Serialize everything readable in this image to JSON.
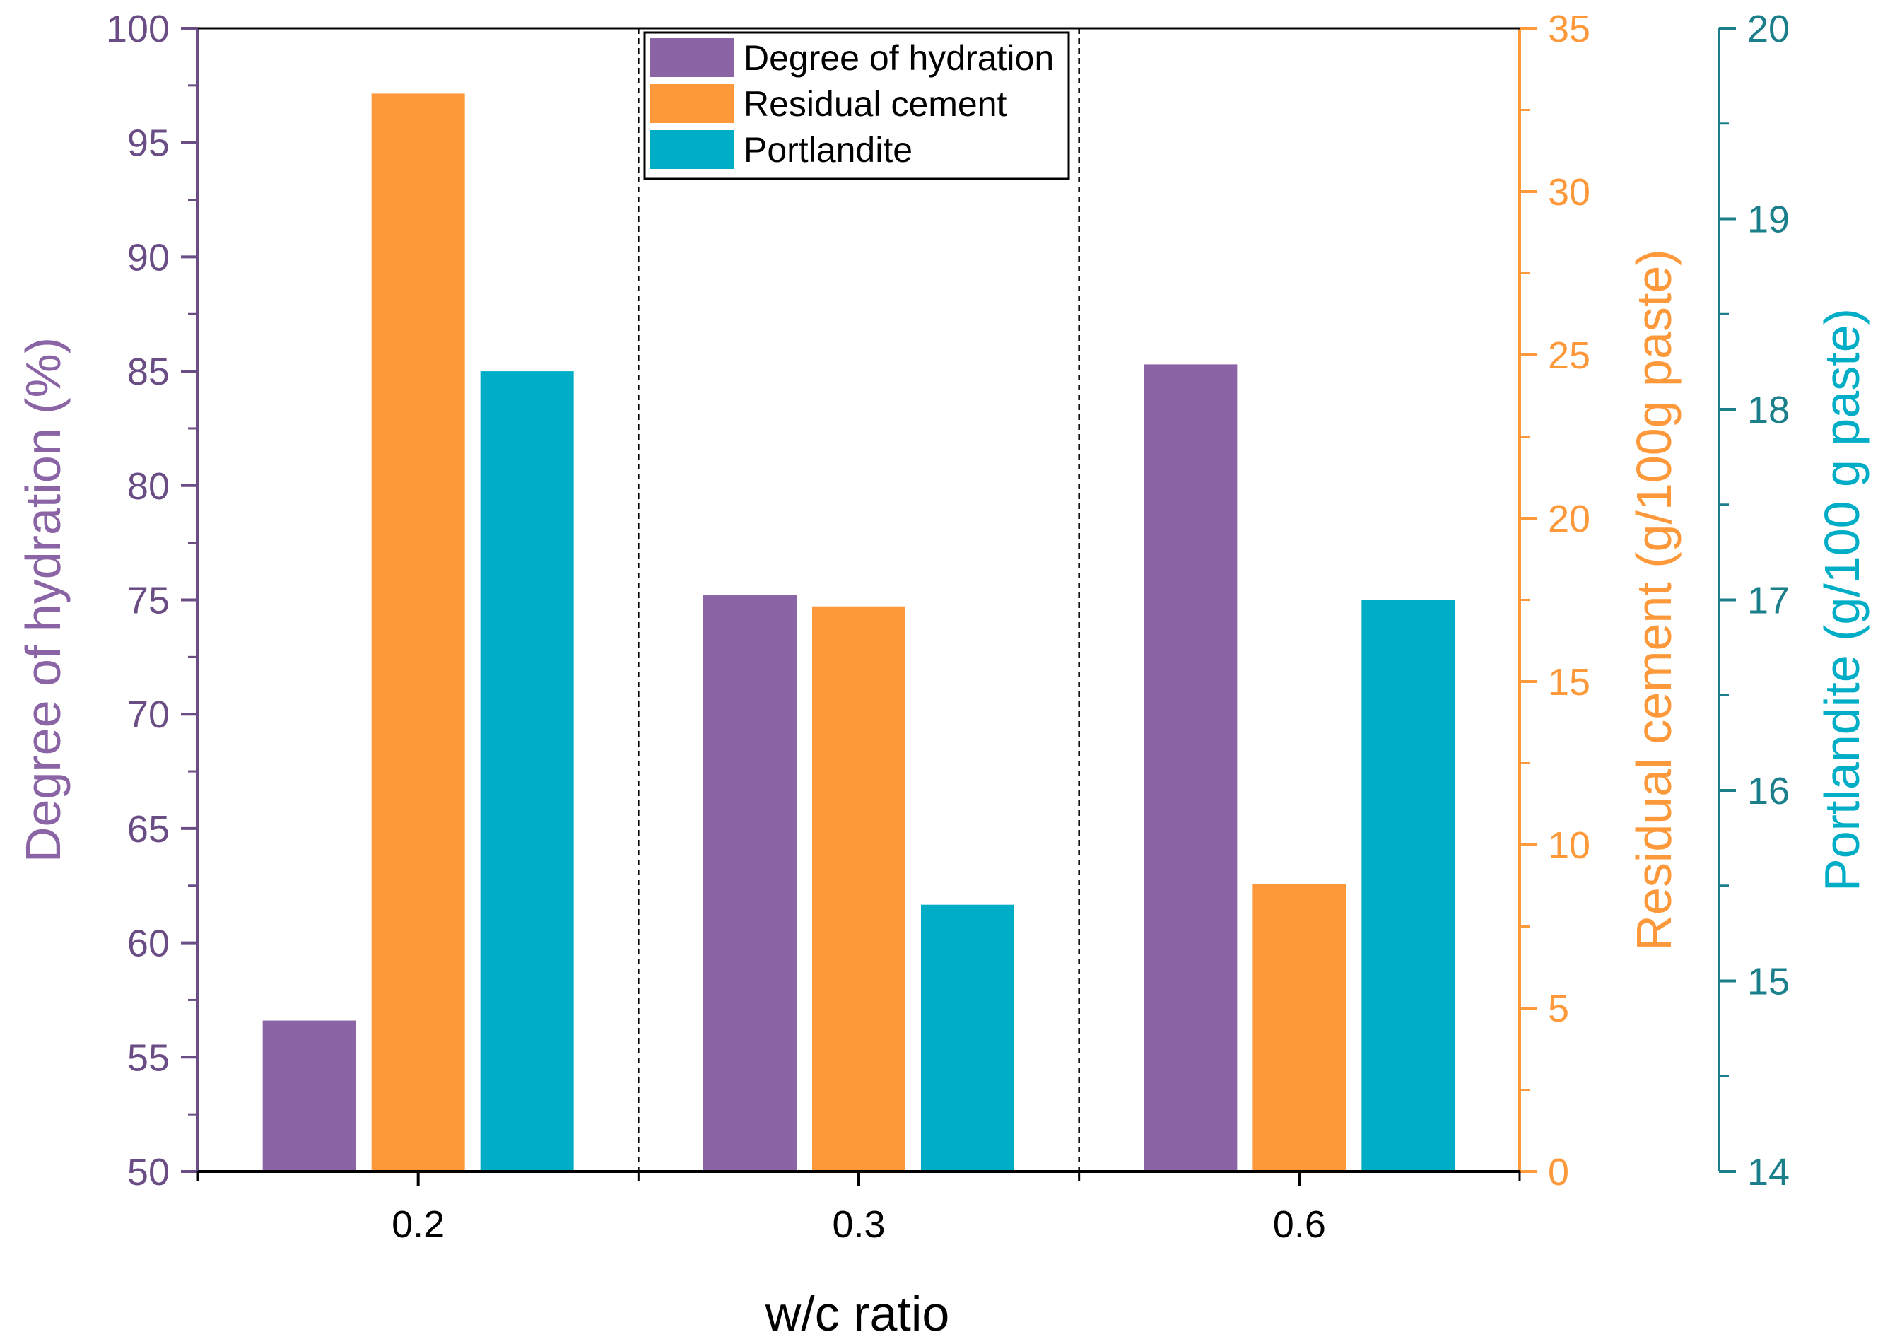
{
  "chart_data": {
    "type": "bar",
    "categories": [
      "0.2",
      "0.3",
      "0.6"
    ],
    "xlabel": "w/c ratio",
    "series": [
      {
        "name": "Degree of hydration",
        "axis": "left",
        "color": "#8a64a4",
        "values": [
          56.6,
          75.2,
          85.3
        ]
      },
      {
        "name": "Residual cement",
        "axis": "right1",
        "color": "#fd993b",
        "values": [
          33.0,
          17.3,
          8.8
        ]
      },
      {
        "name": "Portlandite",
        "axis": "right2",
        "color": "#00adc6",
        "values": [
          18.2,
          15.4,
          17.0
        ]
      }
    ],
    "axes": {
      "left": {
        "label": "Degree of hydration (%)",
        "color": "#6b4d86",
        "labelColor": "#8a64a4",
        "range": [
          50,
          100
        ],
        "ticks": [
          "50",
          "55",
          "60",
          "65",
          "70",
          "75",
          "80",
          "85",
          "90",
          "95",
          "100"
        ],
        "tickStep": 5
      },
      "right1": {
        "label": "Residual cement (g/100g paste)",
        "color": "#fd993b",
        "range": [
          0,
          35
        ],
        "ticks": [
          "0",
          "5",
          "10",
          "15",
          "20",
          "25",
          "30",
          "35"
        ],
        "tickStep": 5
      },
      "right2": {
        "label": "Portlandite (g/100 g paste)",
        "color": "#1a7f8a",
        "labelColor": "#00adc6",
        "range": [
          14,
          20
        ],
        "ticks": [
          "14",
          "15",
          "16",
          "17",
          "18",
          "19",
          "20"
        ],
        "tickStep": 1
      }
    },
    "legend": {
      "placement": "top-center",
      "entries": [
        "Degree of hydration",
        "Residual cement",
        "Portlandite"
      ]
    },
    "separators": "dashed vertical lines between groups"
  }
}
